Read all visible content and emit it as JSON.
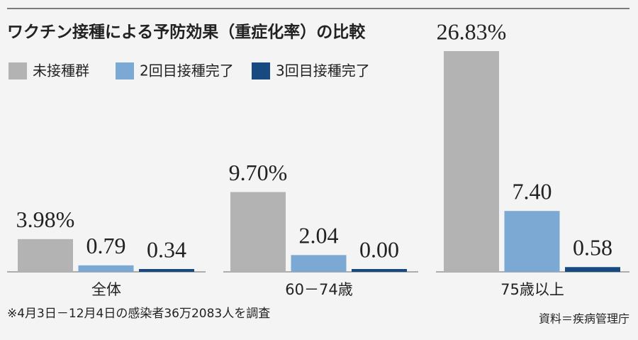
{
  "chart_data": {
    "type": "bar",
    "title": "ワクチン接種による予防効果（重症化率）の比較",
    "categories": [
      "全体",
      "60－74歳",
      "75歳以上"
    ],
    "series": [
      {
        "name": "未接種群",
        "color": "#b3b3b3",
        "values": [
          3.98,
          9.7,
          26.83
        ],
        "value_labels": [
          "3.98%",
          "9.70%",
          "26.83%"
        ]
      },
      {
        "name": "2回目接種完了",
        "color": "#7ca8d4",
        "values": [
          0.79,
          2.04,
          7.4
        ],
        "value_labels": [
          "0.79",
          "2.04",
          "7.40"
        ]
      },
      {
        "name": "3回目接種完了",
        "color": "#174a80",
        "values": [
          0.34,
          0.0,
          0.58
        ],
        "value_labels": [
          "0.34",
          "0.00",
          "0.58"
        ]
      }
    ],
    "note": "※4月3日－12月4日の感染者36万2083人を調査",
    "source": "資料＝疾病管理庁"
  }
}
